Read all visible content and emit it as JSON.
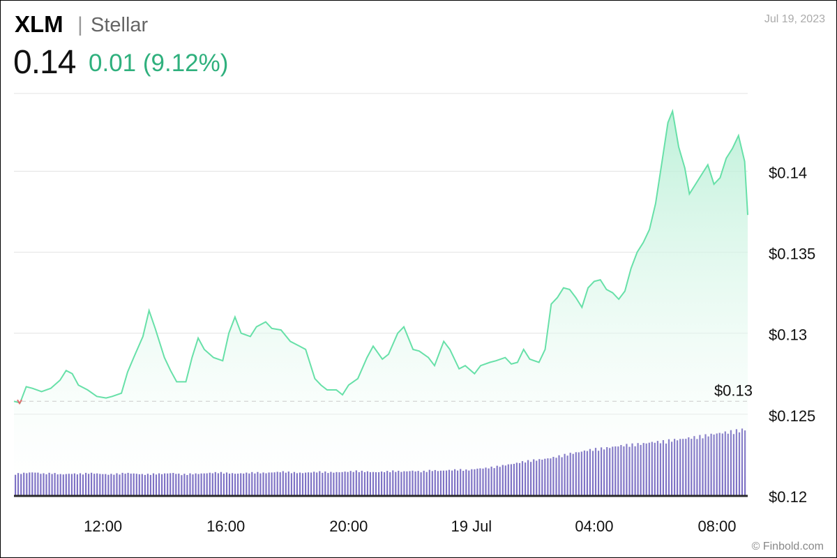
{
  "header": {
    "symbol": "XLM",
    "separator": "|",
    "name": "Stellar",
    "price": "0.14",
    "change": "0.01 (9.12%)",
    "date": "Jul 19, 2023"
  },
  "footer": {
    "credit": "© Finbold.com"
  },
  "colors": {
    "line": "#67e0a8",
    "area": "#e6f8ef",
    "volume": "#5b4bb5",
    "change": "#2fb07d",
    "prev_close_marker": "#e06c6c"
  },
  "chart_data": {
    "type": "area",
    "x_tick_labels": [
      "12:00",
      "16:00",
      "20:00",
      "19 Jul",
      "04:00",
      "08:00"
    ],
    "x_range_hours": [
      9.1,
      33.0
    ],
    "x_tick_hours": [
      12,
      16,
      20,
      24,
      28,
      32
    ],
    "y_tick_labels": [
      "$0.14",
      "$0.135",
      "$0.13",
      "$0.125",
      "$0.12"
    ],
    "y_tick_values": [
      0.14,
      0.135,
      0.13,
      0.125,
      0.12
    ],
    "ylim": [
      0.12,
      0.1448
    ],
    "reference_line": {
      "value": 0.1258,
      "label": "$0.13"
    },
    "grid": true,
    "series": [
      {
        "kind": "price",
        "points": [
          [
            9.1,
            0.1258
          ],
          [
            9.3,
            0.1257
          ],
          [
            9.5,
            0.1267
          ],
          [
            9.7,
            0.1266
          ],
          [
            10.0,
            0.1264
          ],
          [
            10.3,
            0.1266
          ],
          [
            10.6,
            0.1271
          ],
          [
            10.8,
            0.1277
          ],
          [
            11.0,
            0.1275
          ],
          [
            11.2,
            0.1268
          ],
          [
            11.5,
            0.1265
          ],
          [
            11.8,
            0.1261
          ],
          [
            12.1,
            0.126
          ],
          [
            12.3,
            0.1261
          ],
          [
            12.6,
            0.1263
          ],
          [
            12.8,
            0.1276
          ],
          [
            13.0,
            0.1285
          ],
          [
            13.3,
            0.1298
          ],
          [
            13.5,
            0.1314
          ],
          [
            13.7,
            0.1303
          ],
          [
            14.0,
            0.1285
          ],
          [
            14.2,
            0.1277
          ],
          [
            14.4,
            0.127
          ],
          [
            14.7,
            0.127
          ],
          [
            14.9,
            0.1285
          ],
          [
            15.1,
            0.1297
          ],
          [
            15.3,
            0.129
          ],
          [
            15.6,
            0.1285
          ],
          [
            15.9,
            0.1283
          ],
          [
            16.1,
            0.13
          ],
          [
            16.3,
            0.131
          ],
          [
            16.5,
            0.13
          ],
          [
            16.8,
            0.1298
          ],
          [
            17.0,
            0.1304
          ],
          [
            17.3,
            0.1307
          ],
          [
            17.5,
            0.1303
          ],
          [
            17.8,
            0.1302
          ],
          [
            18.1,
            0.1295
          ],
          [
            18.4,
            0.1292
          ],
          [
            18.6,
            0.129
          ],
          [
            18.9,
            0.1272
          ],
          [
            19.1,
            0.1268
          ],
          [
            19.3,
            0.1265
          ],
          [
            19.6,
            0.1265
          ],
          [
            19.8,
            0.1262
          ],
          [
            20.0,
            0.1268
          ],
          [
            20.3,
            0.1272
          ],
          [
            20.6,
            0.1285
          ],
          [
            20.8,
            0.1292
          ],
          [
            21.1,
            0.1284
          ],
          [
            21.3,
            0.1287
          ],
          [
            21.6,
            0.13
          ],
          [
            21.8,
            0.1304
          ],
          [
            22.1,
            0.129
          ],
          [
            22.3,
            0.1289
          ],
          [
            22.6,
            0.1285
          ],
          [
            22.8,
            0.128
          ],
          [
            23.1,
            0.1295
          ],
          [
            23.3,
            0.129
          ],
          [
            23.6,
            0.1278
          ],
          [
            23.8,
            0.128
          ],
          [
            24.1,
            0.1275
          ],
          [
            24.3,
            0.128
          ],
          [
            24.6,
            0.1282
          ],
          [
            24.8,
            0.1283
          ],
          [
            25.1,
            0.1285
          ],
          [
            25.3,
            0.1281
          ],
          [
            25.5,
            0.1282
          ],
          [
            25.7,
            0.129
          ],
          [
            25.9,
            0.1284
          ],
          [
            26.2,
            0.1282
          ],
          [
            26.4,
            0.129
          ],
          [
            26.6,
            0.1318
          ],
          [
            26.8,
            0.1322
          ],
          [
            27.0,
            0.1328
          ],
          [
            27.2,
            0.1327
          ],
          [
            27.4,
            0.1322
          ],
          [
            27.6,
            0.1316
          ],
          [
            27.8,
            0.1328
          ],
          [
            28.0,
            0.1332
          ],
          [
            28.2,
            0.1333
          ],
          [
            28.4,
            0.1327
          ],
          [
            28.6,
            0.1325
          ],
          [
            28.8,
            0.1321
          ],
          [
            29.0,
            0.1326
          ],
          [
            29.2,
            0.134
          ],
          [
            29.4,
            0.135
          ],
          [
            29.6,
            0.1356
          ],
          [
            29.8,
            0.1364
          ],
          [
            30.0,
            0.138
          ],
          [
            30.2,
            0.1405
          ],
          [
            30.4,
            0.143
          ],
          [
            30.55,
            0.1437
          ],
          [
            30.75,
            0.1415
          ],
          [
            30.95,
            0.1402
          ],
          [
            31.1,
            0.1386
          ],
          [
            31.3,
            0.1392
          ],
          [
            31.5,
            0.1398
          ],
          [
            31.7,
            0.1404
          ],
          [
            31.9,
            0.1392
          ],
          [
            32.1,
            0.1396
          ],
          [
            32.3,
            0.1408
          ],
          [
            32.5,
            0.1414
          ],
          [
            32.7,
            0.1422
          ],
          [
            32.9,
            0.1406
          ],
          [
            33.0,
            0.1373
          ]
        ]
      },
      {
        "kind": "volume",
        "relative_values": [
          0.3,
          0.31,
          0.32,
          0.3,
          0.31,
          0.29,
          0.3,
          0.3,
          0.31,
          0.3,
          0.29,
          0.3,
          0.31,
          0.3,
          0.29,
          0.3,
          0.3,
          0.31,
          0.29,
          0.3,
          0.3,
          0.31,
          0.32,
          0.31,
          0.3,
          0.31,
          0.32,
          0.31,
          0.32,
          0.33,
          0.32,
          0.31,
          0.32,
          0.33,
          0.32,
          0.32,
          0.33,
          0.34,
          0.33,
          0.32,
          0.33,
          0.34,
          0.33,
          0.34,
          0.33,
          0.35,
          0.34,
          0.35,
          0.36,
          0.35,
          0.37,
          0.38,
          0.4,
          0.42,
          0.44,
          0.47,
          0.49,
          0.5,
          0.52,
          0.55,
          0.58,
          0.6,
          0.63,
          0.65,
          0.66,
          0.68,
          0.7,
          0.71,
          0.72,
          0.74,
          0.75,
          0.77,
          0.78,
          0.8,
          0.82,
          0.84,
          0.86,
          0.88,
          0.9,
          0.92
        ]
      }
    ]
  }
}
